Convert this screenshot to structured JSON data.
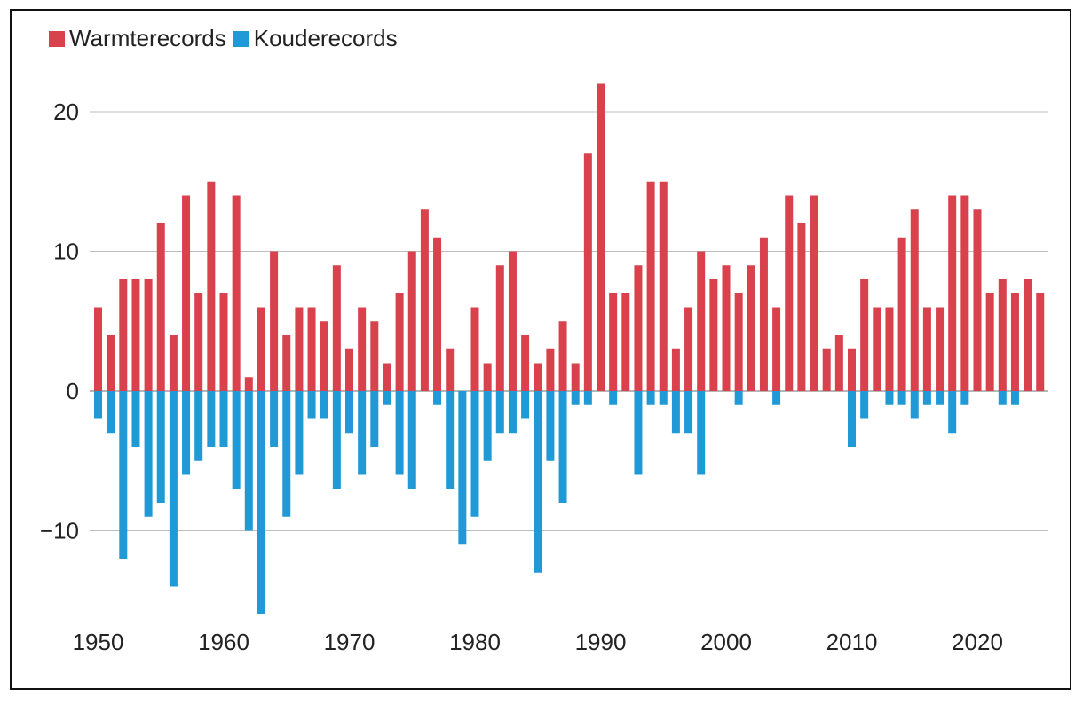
{
  "legend": {
    "warm_label": "Warmterecords",
    "cold_label": "Kouderecords"
  },
  "colors": {
    "warm": "#d9414c",
    "cold": "#1f9ad6",
    "grid": "#bdbdbd",
    "zero_line": "#9e9e9e"
  },
  "chart_data": {
    "type": "bar",
    "title": "",
    "xlabel": "",
    "ylabel": "",
    "x": [
      1950,
      1951,
      1952,
      1953,
      1954,
      1955,
      1956,
      1957,
      1958,
      1959,
      1960,
      1961,
      1962,
      1963,
      1964,
      1965,
      1966,
      1967,
      1968,
      1969,
      1970,
      1971,
      1972,
      1973,
      1974,
      1975,
      1976,
      1977,
      1978,
      1979,
      1980,
      1981,
      1982,
      1983,
      1984,
      1985,
      1986,
      1987,
      1988,
      1989,
      1990,
      1991,
      1992,
      1993,
      1994,
      1995,
      1996,
      1997,
      1998,
      1999,
      2000,
      2001,
      2002,
      2003,
      2004,
      2005,
      2006,
      2007,
      2008,
      2009,
      2010,
      2011,
      2012,
      2013,
      2014,
      2015,
      2016,
      2017,
      2018,
      2019,
      2020,
      2021,
      2022,
      2023,
      2024,
      2025
    ],
    "series": [
      {
        "name": "Warmterecords",
        "values": [
          6,
          4,
          8,
          8,
          8,
          12,
          4,
          14,
          7,
          15,
          7,
          14,
          1,
          6,
          10,
          4,
          6,
          6,
          5,
          9,
          3,
          6,
          5,
          2,
          7,
          10,
          13,
          11,
          3,
          0,
          6,
          2,
          9,
          10,
          4,
          2,
          3,
          5,
          2,
          17,
          22,
          7,
          7,
          9,
          15,
          15,
          3,
          6,
          10,
          8,
          9,
          7,
          9,
          11,
          6,
          14,
          12,
          14,
          3,
          4,
          3,
          8,
          6,
          6,
          11,
          13,
          6,
          6,
          14,
          14,
          13,
          7,
          8,
          7,
          8,
          7
        ]
      },
      {
        "name": "Kouderecords",
        "values": [
          -2,
          -3,
          -12,
          -4,
          -9,
          -8,
          -14,
          -6,
          -5,
          -4,
          -4,
          -7,
          -10,
          -16,
          -4,
          -9,
          -6,
          -2,
          -2,
          -7,
          -3,
          -6,
          -4,
          -1,
          -6,
          -7,
          0,
          -1,
          -7,
          -11,
          -9,
          -5,
          -3,
          -3,
          -2,
          -13,
          -5,
          -8,
          -1,
          -1,
          0,
          -1,
          0,
          -6,
          -1,
          -1,
          -3,
          -3,
          -6,
          0,
          0,
          -1,
          0,
          0,
          -1,
          0,
          0,
          0,
          0,
          0,
          -4,
          -2,
          0,
          -1,
          -1,
          -2,
          -1,
          -1,
          -3,
          -1,
          0,
          0,
          -1,
          -1,
          0,
          0
        ]
      }
    ],
    "yticks": [
      -10,
      0,
      10,
      20
    ],
    "xticks": [
      1950,
      1960,
      1970,
      1980,
      1990,
      2000,
      2010,
      2020
    ],
    "ylim": [
      -16,
      22
    ],
    "grid": true,
    "legend_position": "top-left"
  }
}
